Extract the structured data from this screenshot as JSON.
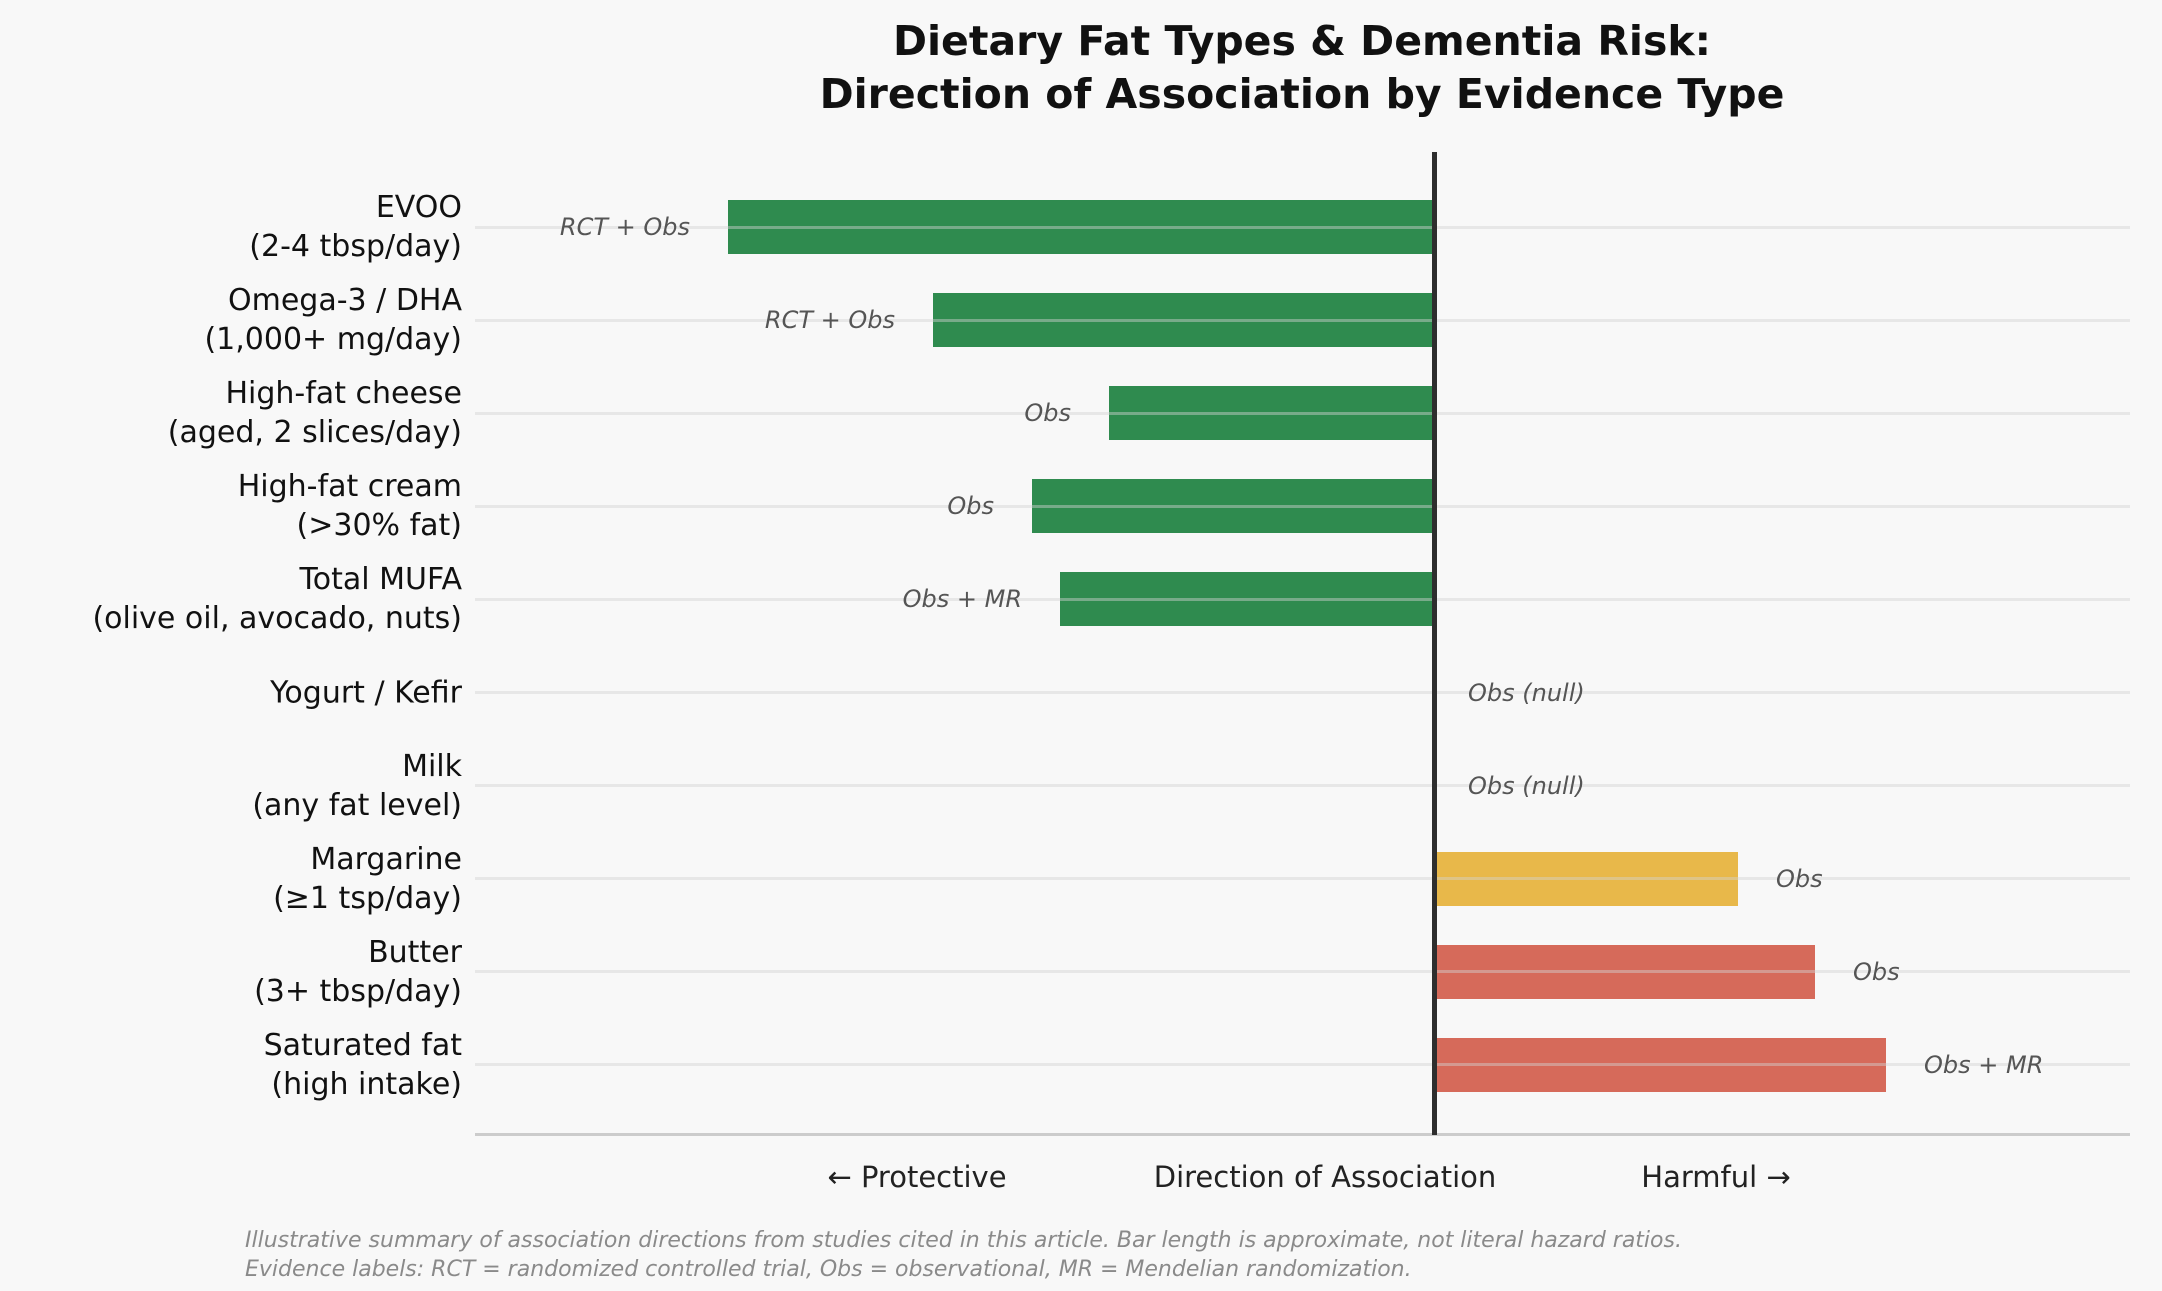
{
  "chart_data": {
    "type": "bar",
    "orientation": "horizontal",
    "title_line1": "Dietary Fat Types & Dementia Risk:",
    "title_line2": "Direction of Association by Evidence Type",
    "xlabel": "Direction of Association",
    "direction_left": "← Protective",
    "direction_right": "Harmful →",
    "xlim": [
      -1.36,
      0.99
    ],
    "grid": true,
    "colors": {
      "protective": "#2f8b4f",
      "mixed": "#e8b84a",
      "harmful": "#d66a5a",
      "zero_line": "#2e2e2e",
      "background": "#f8f8f8"
    },
    "rows": [
      {
        "category": "EVOO (2-4 tbsp/day)",
        "label_lines": [
          "EVOO",
          "(2-4 tbsp/day)"
        ],
        "evidence": "RCT + Obs",
        "value": -1.0,
        "color": "#2f8b4f"
      },
      {
        "category": "Omega-3 / DHA (1,000+ mg/day)",
        "label_lines": [
          "Omega-3 / DHA",
          "(1,000+ mg/day)"
        ],
        "evidence": "RCT + Obs",
        "value": -0.71,
        "color": "#2f8b4f"
      },
      {
        "category": "High-fat cheese (aged, 2 slices/day)",
        "label_lines": [
          "High-fat cheese",
          "(aged, 2 slices/day)"
        ],
        "evidence": "Obs",
        "value": -0.46,
        "color": "#2f8b4f"
      },
      {
        "category": "High-fat cream (>30% fat)",
        "label_lines": [
          "High-fat cream",
          "(>30% fat)"
        ],
        "evidence": "Obs",
        "value": -0.57,
        "color": "#2f8b4f"
      },
      {
        "category": "Total MUFA (olive oil, avocado, nuts)",
        "label_lines": [
          "Total MUFA",
          "(olive oil, avocado, nuts)"
        ],
        "evidence": "Obs + MR",
        "value": -0.53,
        "color": "#2f8b4f"
      },
      {
        "category": "Yogurt / Kefir",
        "label_lines": [
          "Yogurt / Kefir"
        ],
        "evidence": "Obs (null)",
        "value": 0,
        "color": null
      },
      {
        "category": "Milk (any fat level)",
        "label_lines": [
          "Milk",
          "(any fat level)"
        ],
        "evidence": "Obs (null)",
        "value": 0,
        "color": null
      },
      {
        "category": "Margarine (≥1 tsp/day)",
        "label_lines": [
          "Margarine",
          "(≥1 tsp/day)"
        ],
        "evidence": "Obs",
        "value": 0.43,
        "color": "#e8b84a"
      },
      {
        "category": "Butter (3+ tbsp/day)",
        "label_lines": [
          "Butter",
          "(3+ tbsp/day)"
        ],
        "evidence": "Obs",
        "value": 0.54,
        "color": "#d66a5a"
      },
      {
        "category": "Saturated fat (high intake)",
        "label_lines": [
          "Saturated fat",
          "(high intake)"
        ],
        "evidence": "Obs + MR",
        "value": 0.64,
        "color": "#d66a5a"
      }
    ],
    "footnote_line1": "Illustrative summary of association directions from studies cited in this article. Bar length is approximate, not literal hazard ratios.",
    "footnote_line2": "Evidence labels: RCT = randomized controlled trial, Obs = observational, MR = Mendelian randomization."
  }
}
